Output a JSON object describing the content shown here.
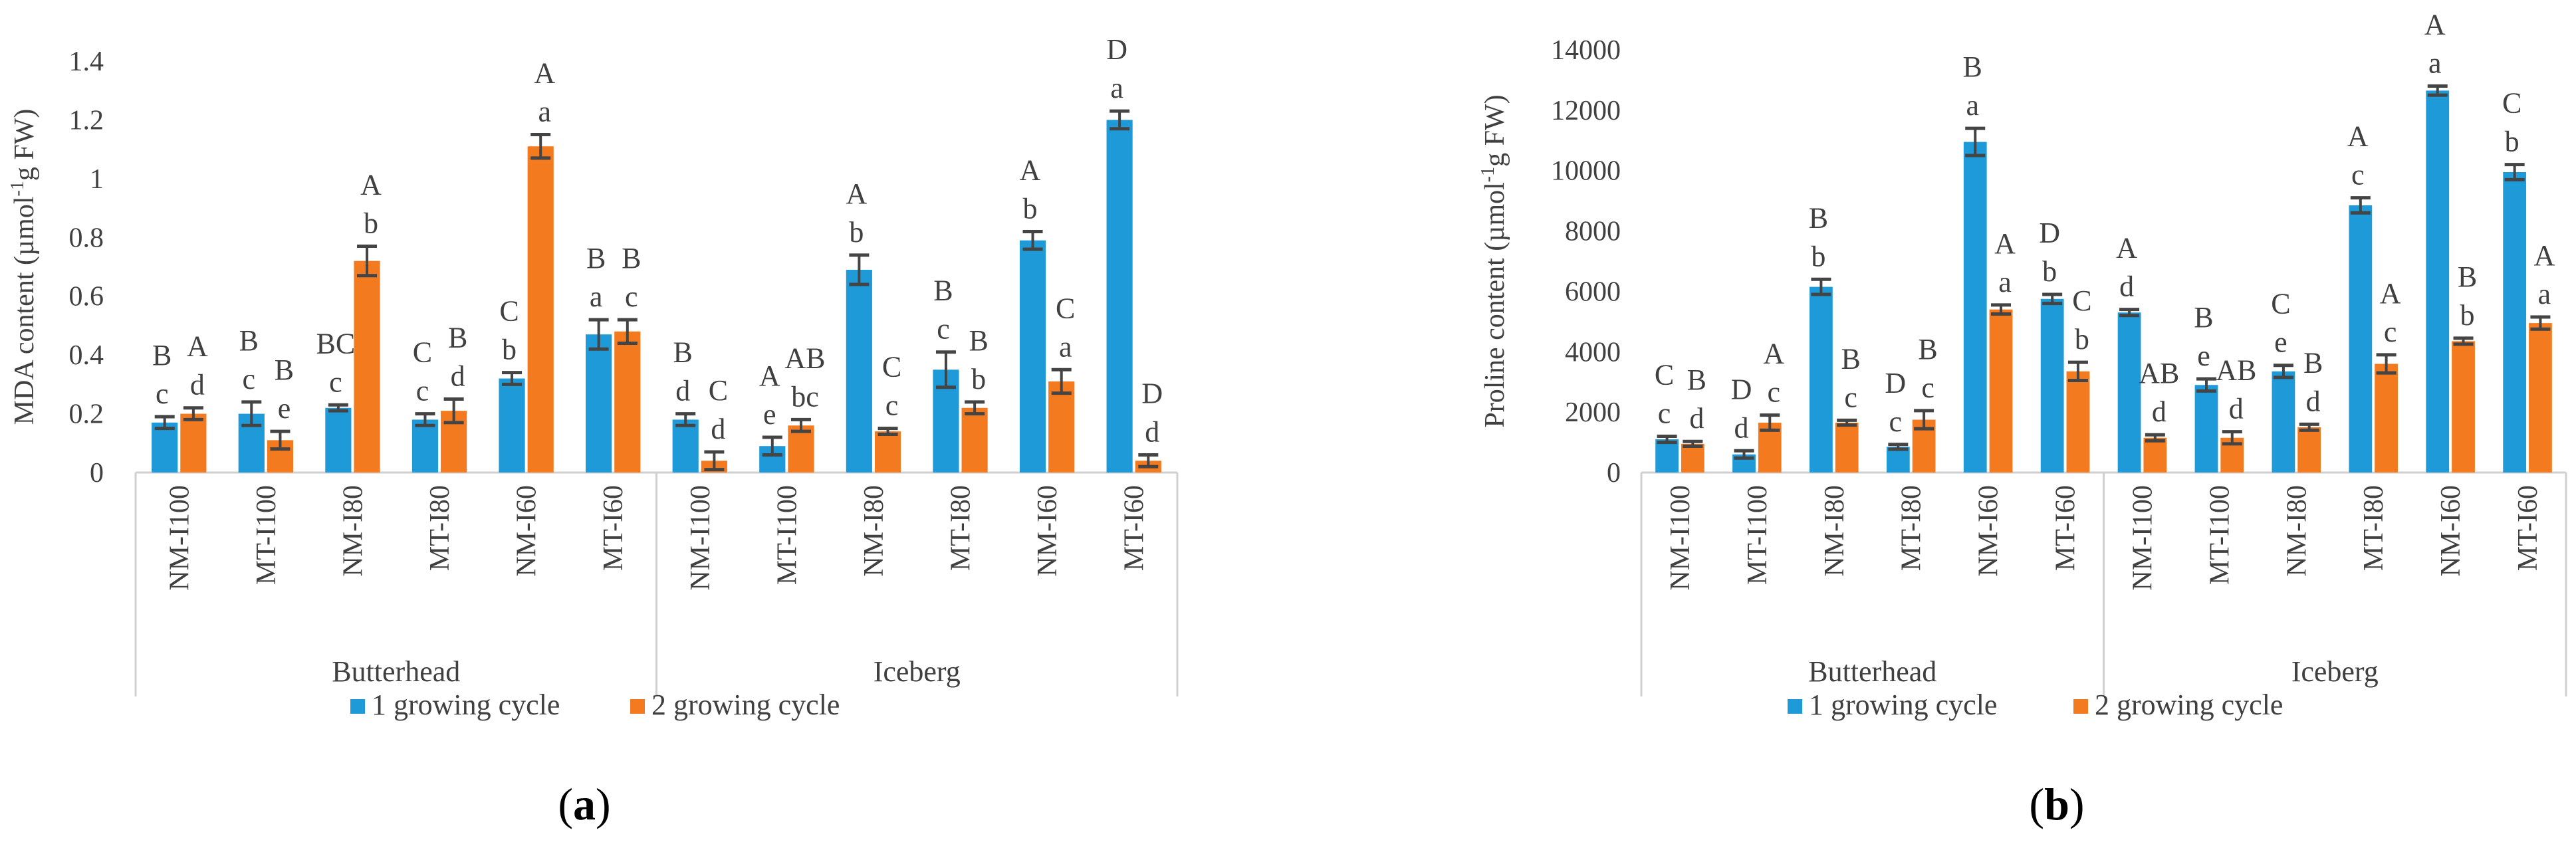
{
  "colors": {
    "series1": "#1f9ad8",
    "series2": "#f47a20",
    "axis": "#d0d0d0",
    "text": "#404040",
    "errorbar": "#444444"
  },
  "legend": [
    "1 growing cycle",
    "2 growing cycle"
  ],
  "panels": [
    {
      "label_paren_open": "(",
      "label_letter": "a",
      "label_paren_close": ")"
    },
    {
      "label_paren_open": "(",
      "label_letter": "b",
      "label_paren_close": ")"
    }
  ],
  "chart_data": [
    {
      "type": "bar",
      "ylabel_prefix": "MDA content (µmol",
      "ylabel_sup": "-1",
      "ylabel_suffix": "g FW)",
      "ylim": [
        0,
        1.4
      ],
      "yticks": [
        0,
        0.2,
        0.4,
        0.6,
        0.8,
        1,
        1.2,
        1.4
      ],
      "ytick_labels": [
        "0",
        "0.2",
        "0.4",
        "0.6",
        "0.8",
        "1",
        "1.2",
        "1.4"
      ],
      "categories": [
        "NM-I100",
        "MT-I100",
        "NM-I80",
        "MT-I80",
        "NM-I60",
        "MT-I60",
        "NM-I100",
        "MT-I100",
        "NM-I80",
        "MT-I80",
        "NM-I60",
        "MT-I60"
      ],
      "groups": [
        {
          "name": "Butterhead",
          "start": 0,
          "end": 6
        },
        {
          "name": "Iceberg",
          "start": 6,
          "end": 12
        }
      ],
      "series": [
        {
          "name": "1 growing cycle",
          "values": [
            0.17,
            0.2,
            0.22,
            0.18,
            0.32,
            0.47,
            0.18,
            0.09,
            0.69,
            0.35,
            0.79,
            1.2
          ],
          "errors": [
            0.02,
            0.04,
            0.01,
            0.02,
            0.02,
            0.05,
            0.02,
            0.03,
            0.05,
            0.06,
            0.03,
            0.03
          ],
          "upper": [
            "B",
            "B",
            "BC",
            "C",
            "C",
            "B",
            "B",
            "A",
            "A",
            "B",
            "A",
            "D"
          ],
          "lower": [
            "c",
            "c",
            "c",
            "c",
            "b",
            "a",
            "d",
            "e",
            "b",
            "c",
            "b",
            "a"
          ]
        },
        {
          "name": "2 growing cycle",
          "values": [
            0.2,
            0.11,
            0.72,
            0.21,
            1.11,
            0.48,
            0.04,
            0.16,
            0.14,
            0.22,
            0.31,
            0.04
          ],
          "errors": [
            0.02,
            0.03,
            0.05,
            0.04,
            0.04,
            0.04,
            0.03,
            0.02,
            0.01,
            0.02,
            0.04,
            0.02
          ],
          "upper": [
            "A",
            "B",
            "A",
            "B",
            "A",
            "B",
            "C",
            "AB",
            "C",
            "B",
            "C",
            "D"
          ],
          "lower": [
            "d",
            "e",
            "b",
            "d",
            "a",
            "c",
            "d",
            "bc",
            "c",
            "b",
            "a",
            "d"
          ]
        }
      ]
    },
    {
      "type": "bar",
      "ylabel_prefix": "Proline content (µmol",
      "ylabel_sup": "-1",
      "ylabel_suffix": "g FW)",
      "ylim": [
        0,
        14000
      ],
      "yticks": [
        0,
        2000,
        4000,
        6000,
        8000,
        10000,
        12000,
        14000
      ],
      "ytick_labels": [
        "0",
        "2000",
        "4000",
        "6000",
        "8000",
        "10000",
        "12000",
        "14000"
      ],
      "categories": [
        "NM-I100",
        "MT-I100",
        "NM-I80",
        "MT-I80",
        "NM-I60",
        "MT-I60",
        "NM-I100",
        "MT-I100",
        "NM-I80",
        "MT-I80",
        "NM-I60",
        "MT-I60"
      ],
      "groups": [
        {
          "name": "Butterhead",
          "start": 0,
          "end": 6
        },
        {
          "name": "Iceberg",
          "start": 6,
          "end": 12
        }
      ],
      "series": [
        {
          "name": "1 growing cycle",
          "values": [
            1100,
            600,
            6150,
            850,
            10950,
            5750,
            5300,
            2900,
            3350,
            8850,
            12650,
            9950
          ],
          "errors": [
            100,
            120,
            250,
            80,
            450,
            150,
            100,
            200,
            200,
            250,
            150,
            250
          ],
          "upper": [
            "C",
            "D",
            "B",
            "D",
            "B",
            "D",
            "A",
            "B",
            "C",
            "A",
            "A",
            "C"
          ],
          "lower": [
            "c",
            "d",
            "b",
            "c",
            "a",
            "b",
            "d",
            "e",
            "e",
            "c",
            "a",
            "b"
          ]
        },
        {
          "name": "2 growing cycle",
          "values": [
            950,
            1650,
            1650,
            1750,
            5400,
            3350,
            1150,
            1150,
            1500,
            3600,
            4350,
            4950
          ],
          "errors": [
            80,
            250,
            80,
            300,
            150,
            300,
            100,
            200,
            100,
            300,
            100,
            200
          ],
          "upper": [
            "B",
            "A",
            "B",
            "B",
            "A",
            "C",
            "AB",
            "AB",
            "B",
            "A",
            "B",
            "A"
          ],
          "lower": [
            "d",
            "c",
            "c",
            "c",
            "a",
            "b",
            "d",
            "d",
            "d",
            "c",
            "b",
            "a"
          ]
        }
      ]
    }
  ]
}
